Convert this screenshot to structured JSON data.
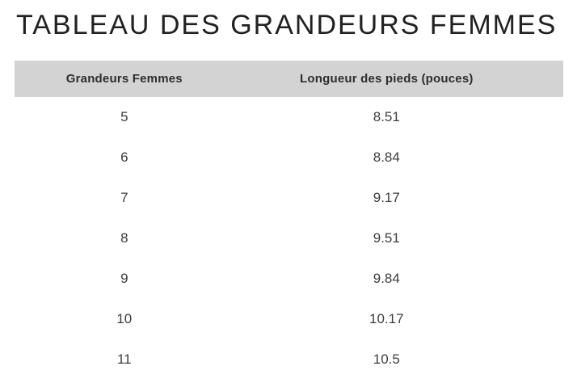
{
  "page": {
    "title": "TABLEAU DES GRANDEURS FEMMES"
  },
  "table": {
    "columns": [
      "Grandeurs Femmes",
      "Longueur des pieds (pouces)"
    ],
    "rows": [
      {
        "size": "5",
        "length": "8.51"
      },
      {
        "size": "6",
        "length": "8.84"
      },
      {
        "size": "7",
        "length": "9.17"
      },
      {
        "size": "8",
        "length": "9.51"
      },
      {
        "size": "9",
        "length": "9.84"
      },
      {
        "size": "10",
        "length": "10.17"
      },
      {
        "size": "11",
        "length": "10.5"
      }
    ]
  },
  "colors": {
    "header_bg": "#d3d3d3",
    "title_text": "#212121",
    "header_text": "#2e2e2e",
    "cell_text": "#3d3d3d",
    "page_bg": "#ffffff"
  }
}
